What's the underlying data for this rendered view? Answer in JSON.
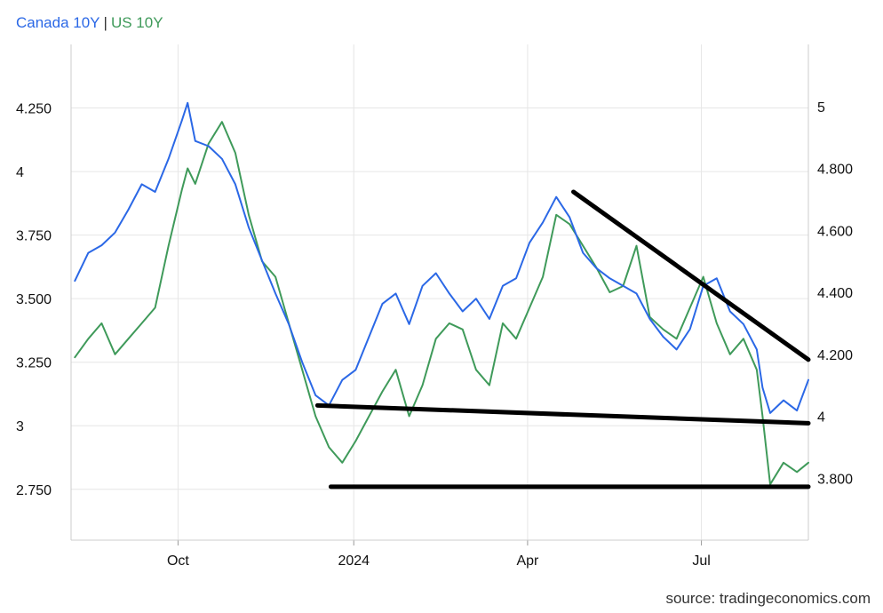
{
  "legend": {
    "canada_label": "Canada 10Y",
    "separator": "|",
    "us_label": "US 10Y"
  },
  "source": "source: tradingeconomics.com",
  "colors": {
    "canada": "#2b68e6",
    "us": "#3f9a5a",
    "trendline": "#000000",
    "grid": "#e6e6e6"
  },
  "chart_data": {
    "type": "line",
    "title": "",
    "grid": true,
    "legend_position": "top-left",
    "x_ticks": [
      "Oct",
      "2024",
      "Apr",
      "Jul"
    ],
    "y_left": {
      "ticks": [
        "2.750",
        "3",
        "3.250",
        "3.500",
        "3.750",
        "4",
        "4.250"
      ],
      "range": [
        2.55,
        4.5
      ]
    },
    "y_right": {
      "ticks": [
        "3.800",
        "4",
        "4.200",
        "4.400",
        "4.600",
        "4.800",
        "5"
      ],
      "range": [
        3.6,
        5.2
      ]
    },
    "series": [
      {
        "name": "Canada 10Y",
        "axis": "left",
        "color": "#2b68e6",
        "x": [
          "2023-08-08",
          "2023-08-15",
          "2023-08-22",
          "2023-08-29",
          "2023-09-05",
          "2023-09-12",
          "2023-09-19",
          "2023-09-26",
          "2023-10-03",
          "2023-10-06",
          "2023-10-10",
          "2023-10-17",
          "2023-10-24",
          "2023-10-31",
          "2023-11-07",
          "2023-11-14",
          "2023-11-21",
          "2023-11-28",
          "2023-12-05",
          "2023-12-12",
          "2023-12-19",
          "2023-12-26",
          "2024-01-02",
          "2024-01-09",
          "2024-01-16",
          "2024-01-23",
          "2024-01-30",
          "2024-02-06",
          "2024-02-13",
          "2024-02-20",
          "2024-02-27",
          "2024-03-05",
          "2024-03-12",
          "2024-03-19",
          "2024-03-26",
          "2024-04-02",
          "2024-04-09",
          "2024-04-16",
          "2024-04-23",
          "2024-04-30",
          "2024-05-07",
          "2024-05-14",
          "2024-05-21",
          "2024-05-28",
          "2024-06-04",
          "2024-06-11",
          "2024-06-18",
          "2024-06-25",
          "2024-07-02",
          "2024-07-09",
          "2024-07-16",
          "2024-07-23",
          "2024-07-30",
          "2024-08-02",
          "2024-08-06",
          "2024-08-13",
          "2024-08-20",
          "2024-08-26"
        ],
        "values": [
          3.57,
          3.68,
          3.71,
          3.76,
          3.85,
          3.95,
          3.92,
          4.05,
          4.2,
          4.27,
          4.12,
          4.1,
          4.05,
          3.95,
          3.78,
          3.65,
          3.52,
          3.4,
          3.25,
          3.12,
          3.08,
          3.18,
          3.22,
          3.35,
          3.48,
          3.52,
          3.4,
          3.55,
          3.6,
          3.52,
          3.45,
          3.5,
          3.42,
          3.55,
          3.58,
          3.72,
          3.8,
          3.9,
          3.82,
          3.68,
          3.62,
          3.58,
          3.55,
          3.52,
          3.42,
          3.35,
          3.3,
          3.38,
          3.55,
          3.58,
          3.45,
          3.4,
          3.3,
          3.15,
          3.05,
          3.1,
          3.06,
          3.18
        ]
      },
      {
        "name": "US 10Y",
        "axis": "right",
        "color": "#3f9a5a",
        "x": [
          "2023-08-08",
          "2023-08-15",
          "2023-08-22",
          "2023-08-29",
          "2023-09-05",
          "2023-09-12",
          "2023-09-19",
          "2023-09-26",
          "2023-10-03",
          "2023-10-06",
          "2023-10-10",
          "2023-10-17",
          "2023-10-24",
          "2023-10-31",
          "2023-11-07",
          "2023-11-14",
          "2023-11-21",
          "2023-11-28",
          "2023-12-05",
          "2023-12-12",
          "2023-12-19",
          "2023-12-26",
          "2024-01-02",
          "2024-01-09",
          "2024-01-16",
          "2024-01-23",
          "2024-01-30",
          "2024-02-06",
          "2024-02-13",
          "2024-02-20",
          "2024-02-27",
          "2024-03-05",
          "2024-03-12",
          "2024-03-19",
          "2024-03-26",
          "2024-04-02",
          "2024-04-09",
          "2024-04-16",
          "2024-04-23",
          "2024-04-30",
          "2024-05-07",
          "2024-05-14",
          "2024-05-21",
          "2024-05-28",
          "2024-06-04",
          "2024-06-11",
          "2024-06-18",
          "2024-06-25",
          "2024-07-02",
          "2024-07-09",
          "2024-07-16",
          "2024-07-23",
          "2024-07-30",
          "2024-08-02",
          "2024-08-06",
          "2024-08-13",
          "2024-08-20",
          "2024-08-26"
        ],
        "values": [
          4.19,
          4.25,
          4.3,
          4.2,
          4.25,
          4.3,
          4.35,
          4.55,
          4.73,
          4.8,
          4.75,
          4.88,
          4.95,
          4.85,
          4.65,
          4.5,
          4.45,
          4.3,
          4.15,
          4.0,
          3.9,
          3.85,
          3.92,
          4.0,
          4.08,
          4.15,
          4.0,
          4.1,
          4.25,
          4.3,
          4.28,
          4.15,
          4.1,
          4.3,
          4.25,
          4.35,
          4.45,
          4.65,
          4.62,
          4.55,
          4.48,
          4.4,
          4.42,
          4.55,
          4.32,
          4.28,
          4.25,
          4.35,
          4.45,
          4.3,
          4.2,
          4.25,
          4.15,
          4.0,
          3.78,
          3.85,
          3.82,
          3.85
        ]
      }
    ],
    "trendlines": [
      {
        "axis": "left",
        "x": [
          "2024-04-25",
          "2024-08-26"
        ],
        "y": [
          3.92,
          3.26
        ]
      },
      {
        "axis": "left",
        "x": [
          "2023-12-13",
          "2024-08-26"
        ],
        "y": [
          3.08,
          3.01
        ]
      },
      {
        "axis": "left",
        "x": [
          "2023-12-20",
          "2024-08-26"
        ],
        "y": [
          2.76,
          2.76
        ]
      }
    ],
    "x_range": [
      "2023-08-06",
      "2024-08-26"
    ]
  }
}
